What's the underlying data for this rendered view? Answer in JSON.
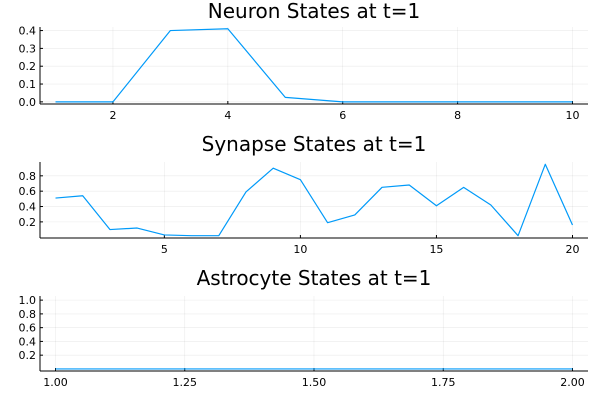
{
  "line_color": "#009af9",
  "chart_data": [
    {
      "type": "line",
      "title": "Neuron States at t=1",
      "x": [
        1,
        2,
        3,
        4,
        5,
        6,
        7,
        8,
        9,
        10
      ],
      "series": [
        {
          "values": [
            0.0,
            0.0,
            0.4,
            0.41,
            0.025,
            0.0,
            0.0,
            0.0,
            0.0,
            0.0
          ]
        }
      ],
      "xlim": [
        0.73,
        10.27
      ],
      "ylim": [
        -0.012,
        0.42
      ],
      "xticks": [
        2,
        4,
        6,
        8,
        10
      ],
      "xtick_labels": [
        "2",
        "4",
        "6",
        "8",
        "10"
      ],
      "yticks": [
        0.0,
        0.1,
        0.2,
        0.3,
        0.4
      ],
      "ytick_labels": [
        "0.0",
        "0.1",
        "0.2",
        "0.3",
        "0.4"
      ],
      "grid": true,
      "legend": "none"
    },
    {
      "type": "line",
      "title": "Synapse States at t=1",
      "x": [
        1,
        2,
        3,
        4,
        5,
        6,
        7,
        8,
        9,
        10,
        11,
        12,
        13,
        14,
        15,
        16,
        17,
        18,
        19,
        20
      ],
      "series": [
        {
          "values": [
            0.51,
            0.54,
            0.1,
            0.12,
            0.03,
            0.02,
            0.02,
            0.59,
            0.9,
            0.75,
            0.19,
            0.29,
            0.65,
            0.68,
            0.41,
            0.65,
            0.42,
            0.02,
            0.95,
            0.16
          ]
        }
      ],
      "xlim": [
        0.43,
        20.57
      ],
      "ylim": [
        -0.01,
        0.98
      ],
      "xticks": [
        5,
        10,
        15,
        20
      ],
      "xtick_labels": [
        "5",
        "10",
        "15",
        "20"
      ],
      "yticks": [
        0.2,
        0.4,
        0.6,
        0.8
      ],
      "ytick_labels": [
        "0.2",
        "0.4",
        "0.6",
        "0.8"
      ],
      "grid": true,
      "legend": "none"
    },
    {
      "type": "line",
      "title": "Astrocyte States at t=1",
      "x": [
        1.0,
        2.0
      ],
      "series": [
        {
          "values": [
            0.0,
            0.0
          ]
        }
      ],
      "xlim": [
        0.97,
        2.03
      ],
      "ylim": [
        -0.03,
        1.06
      ],
      "xticks": [
        1.0,
        1.25,
        1.5,
        1.75,
        2.0
      ],
      "xtick_labels": [
        "1.00",
        "1.25",
        "1.50",
        "1.75",
        "2.00"
      ],
      "yticks": [
        0.2,
        0.4,
        0.6,
        0.8,
        1.0
      ],
      "ytick_labels": [
        "0.2",
        "0.4",
        "0.6",
        "0.8",
        "1.0"
      ],
      "grid": true,
      "legend": "none"
    }
  ]
}
